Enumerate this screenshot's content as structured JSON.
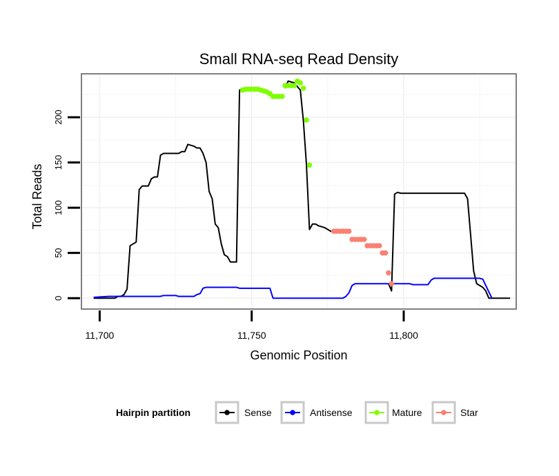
{
  "chart_data": {
    "type": "line",
    "title": "Small RNA-seq Read Density",
    "xlabel": "Genomic Position",
    "ylabel": "Total Reads",
    "xlim": [
      11694,
      11837
    ],
    "ylim": [
      -12,
      248
    ],
    "x_ticks": [
      11700,
      11750,
      11800
    ],
    "x_tick_labels": [
      "11,700",
      "11,750",
      "11,800"
    ],
    "y_ticks": [
      0,
      50,
      100,
      150,
      200
    ],
    "y_tick_labels": [
      "0",
      "50",
      "100",
      "150",
      "200"
    ],
    "grid": true,
    "legend": {
      "title": "Hairpin partition",
      "position": "bottom",
      "entries": [
        {
          "name": "Sense",
          "color": "#000000"
        },
        {
          "name": "Antisense",
          "color": "#0000ff"
        },
        {
          "name": "Mature",
          "color": "#7fff00"
        },
        {
          "name": "Star",
          "color": "#fa8072"
        }
      ]
    },
    "series": [
      {
        "name": "Sense",
        "color": "#000000",
        "style": "line",
        "points": [
          [
            11698,
            0
          ],
          [
            11705,
            0
          ],
          [
            11706,
            2
          ],
          [
            11707,
            2
          ],
          [
            11708,
            4
          ],
          [
            11709,
            10
          ],
          [
            11710,
            58
          ],
          [
            11711,
            60
          ],
          [
            11712,
            62
          ],
          [
            11713,
            120
          ],
          [
            11714,
            124
          ],
          [
            11716,
            124
          ],
          [
            11717,
            132
          ],
          [
            11718,
            134
          ],
          [
            11719,
            134
          ],
          [
            11720,
            158
          ],
          [
            11721,
            160
          ],
          [
            11726,
            160
          ],
          [
            11727,
            162
          ],
          [
            11728,
            162
          ],
          [
            11729,
            170
          ],
          [
            11731,
            168
          ],
          [
            11732,
            166
          ],
          [
            11733,
            166
          ],
          [
            11734,
            160
          ],
          [
            11735,
            150
          ],
          [
            11736,
            118
          ],
          [
            11737,
            110
          ],
          [
            11738,
            82
          ],
          [
            11739,
            78
          ],
          [
            11740,
            60
          ],
          [
            11741,
            48
          ],
          [
            11742,
            46
          ],
          [
            11743,
            40
          ],
          [
            11745,
            40
          ],
          [
            11746,
            230
          ],
          [
            11747,
            232
          ]
        ]
      },
      {
        "name": "Sense-2",
        "color": "#000000",
        "style": "line",
        "points": [
          [
            11761,
            232
          ],
          [
            11762,
            240
          ],
          [
            11764,
            238
          ],
          [
            11766,
            230
          ],
          [
            11767,
            196
          ],
          [
            11768,
            148
          ],
          [
            11769,
            76
          ],
          [
            11770,
            82
          ],
          [
            11771,
            82
          ],
          [
            11772,
            80
          ],
          [
            11774,
            78
          ],
          [
            11776,
            74
          ],
          [
            11777,
            74
          ]
        ]
      },
      {
        "name": "Sense-3",
        "color": "#000000",
        "style": "line",
        "points": [
          [
            11795,
            16
          ],
          [
            11796,
            8
          ],
          [
            11797,
            115
          ],
          [
            11798,
            117
          ],
          [
            11799,
            116
          ],
          [
            11820,
            116
          ],
          [
            11821,
            110
          ],
          [
            11822,
            70
          ],
          [
            11823,
            30
          ],
          [
            11824,
            16
          ],
          [
            11826,
            12
          ],
          [
            11827,
            8
          ],
          [
            11828,
            0
          ],
          [
            11835,
            0
          ]
        ]
      },
      {
        "name": "Antisense",
        "color": "#0000ff",
        "style": "line",
        "points": [
          [
            11698,
            1
          ],
          [
            11703,
            2
          ],
          [
            11720,
            2
          ],
          [
            11721,
            3
          ],
          [
            11725,
            3
          ],
          [
            11726,
            2
          ],
          [
            11731,
            2
          ],
          [
            11732,
            4
          ],
          [
            11733,
            5
          ],
          [
            11734,
            11
          ],
          [
            11735,
            12
          ],
          [
            11745,
            12
          ],
          [
            11746,
            11
          ],
          [
            11756,
            11
          ],
          [
            11757,
            0
          ],
          [
            11780,
            0
          ],
          [
            11781,
            2
          ],
          [
            11782,
            6
          ],
          [
            11783,
            14
          ],
          [
            11784,
            16
          ],
          [
            11802,
            16
          ],
          [
            11803,
            15
          ],
          [
            11808,
            15
          ],
          [
            11809,
            20
          ],
          [
            11810,
            22
          ],
          [
            11825,
            22
          ],
          [
            11826,
            21
          ],
          [
            11829,
            0
          ]
        ]
      },
      {
        "name": "Mature",
        "color": "#7fff00",
        "style": "points",
        "points": [
          [
            11747,
            230
          ],
          [
            11748,
            231
          ],
          [
            11749,
            231
          ],
          [
            11750,
            231
          ],
          [
            11751,
            231
          ],
          [
            11752,
            231
          ],
          [
            11753,
            230
          ],
          [
            11754,
            229
          ],
          [
            11755,
            228
          ],
          [
            11756,
            226
          ],
          [
            11757,
            223
          ],
          [
            11758,
            223
          ],
          [
            11759,
            223
          ],
          [
            11760,
            223
          ],
          [
            11761,
            235
          ],
          [
            11762,
            235
          ],
          [
            11763,
            235
          ],
          [
            11764,
            235
          ],
          [
            11765,
            240
          ],
          [
            11766,
            238
          ],
          [
            11767,
            232
          ],
          [
            11768,
            197
          ],
          [
            11769,
            147
          ]
        ]
      },
      {
        "name": "Star",
        "color": "#fa8072",
        "style": "points",
        "points": [
          [
            11777,
            74
          ],
          [
            11778,
            74
          ],
          [
            11779,
            74
          ],
          [
            11780,
            74
          ],
          [
            11781,
            74
          ],
          [
            11782,
            74
          ],
          [
            11783,
            65
          ],
          [
            11784,
            65
          ],
          [
            11785,
            65
          ],
          [
            11786,
            65
          ],
          [
            11787,
            65
          ],
          [
            11788,
            58
          ],
          [
            11789,
            58
          ],
          [
            11790,
            58
          ],
          [
            11791,
            58
          ],
          [
            11792,
            58
          ],
          [
            11793,
            50
          ],
          [
            11794,
            50
          ],
          [
            11795,
            28
          ],
          [
            11796,
            16
          ]
        ]
      }
    ]
  }
}
